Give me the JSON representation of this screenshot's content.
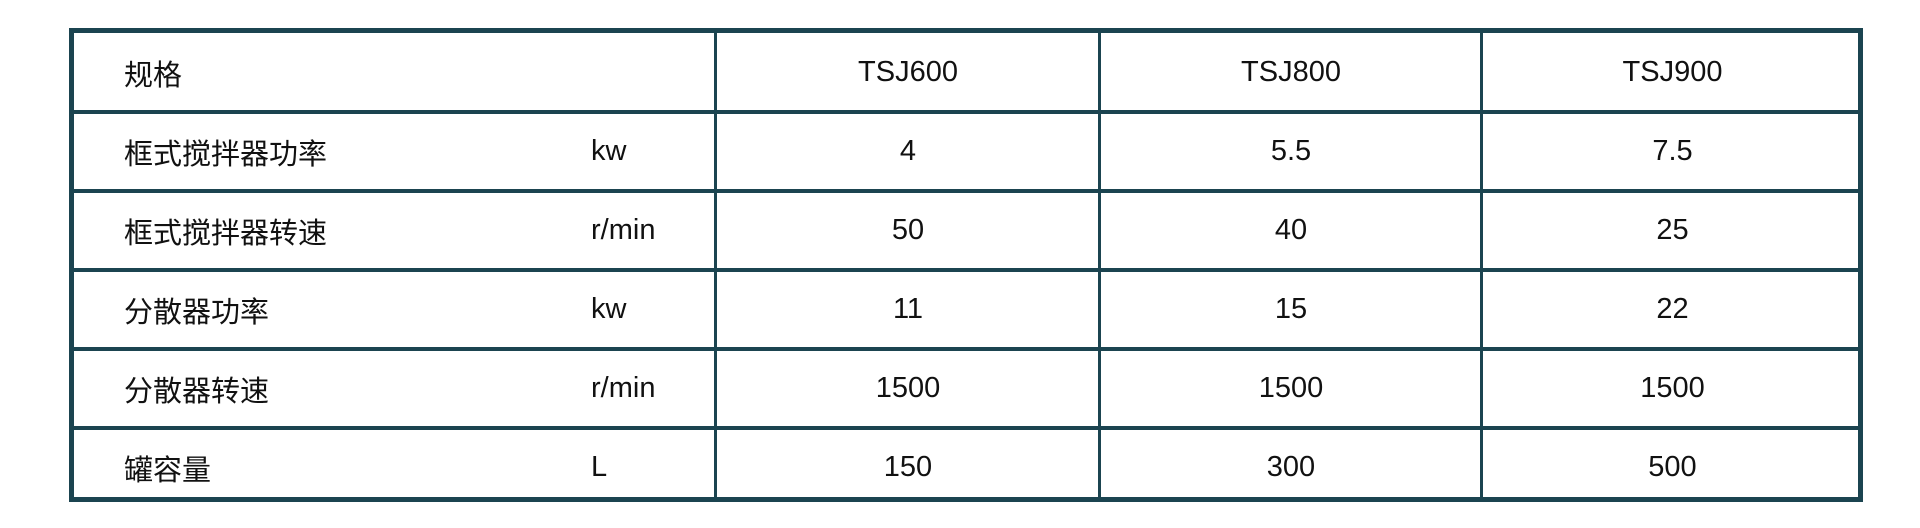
{
  "table": {
    "header": {
      "label": "规格",
      "models": [
        "TSJ600",
        "TSJ800",
        "TSJ900"
      ]
    },
    "rows": [
      {
        "name": "框式搅拌器功率",
        "unit": "kw",
        "values": [
          "4",
          "5.5",
          "7.5"
        ]
      },
      {
        "name": "框式搅拌器转速",
        "unit": "r/min",
        "values": [
          "50",
          "40",
          "25"
        ]
      },
      {
        "name": "分散器功率",
        "unit": "kw",
        "values": [
          "11",
          "15",
          "22"
        ]
      },
      {
        "name": "分散器转速",
        "unit": "r/min",
        "values": [
          "1500",
          "1500",
          "1500"
        ]
      },
      {
        "name": "罐容量",
        "unit": "L",
        "values": [
          "150",
          "300",
          "500"
        ]
      }
    ],
    "border_color": "#1b4450"
  }
}
